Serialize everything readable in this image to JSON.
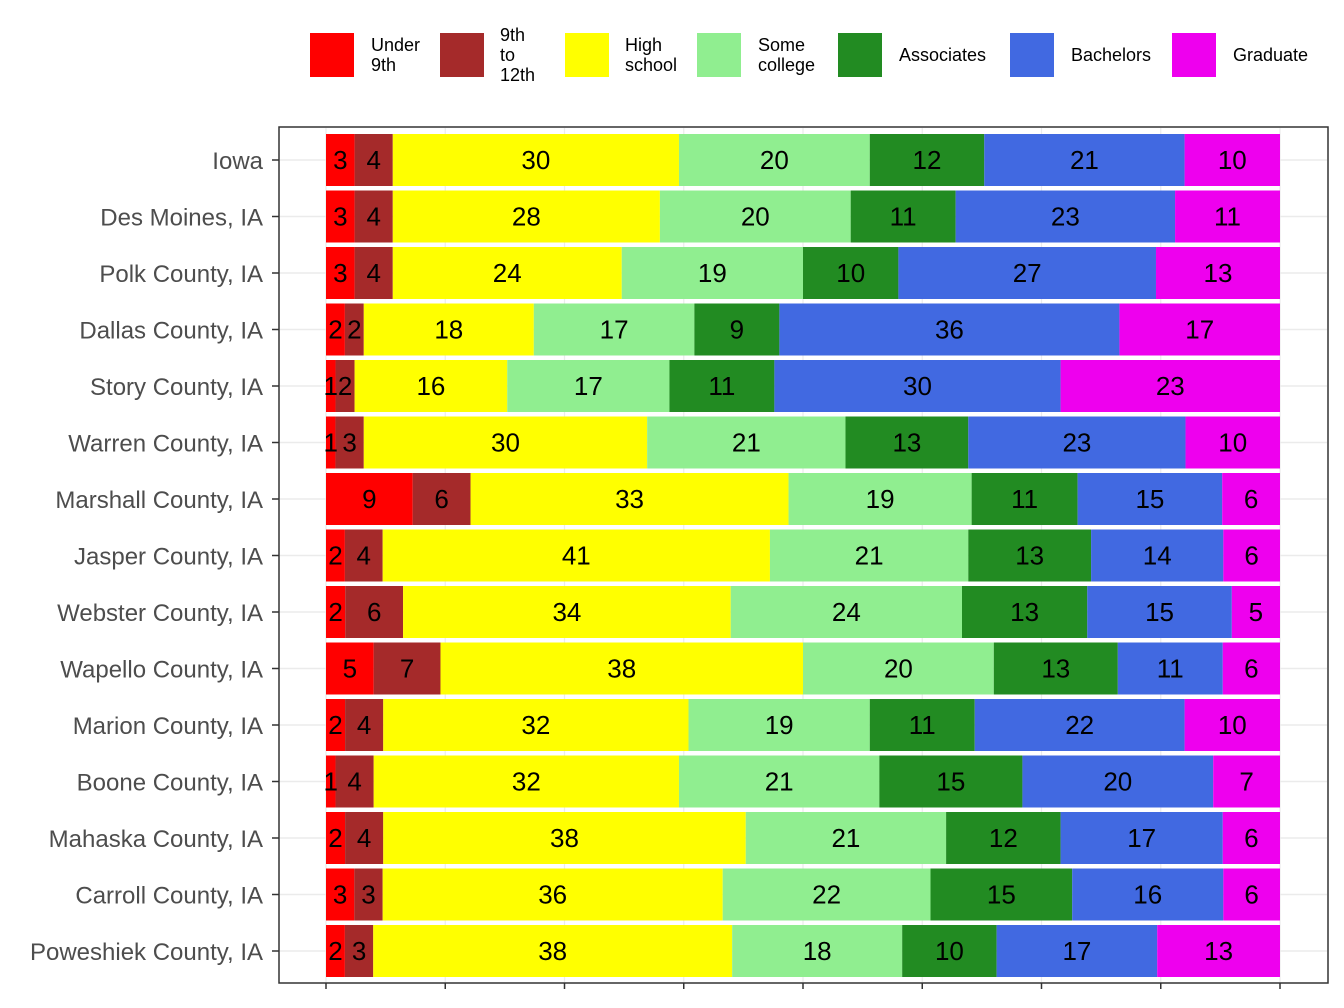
{
  "chart_data": {
    "type": "bar",
    "orientation": "horizontal",
    "stacked": true,
    "normalized_percent": true,
    "title": "",
    "xlabel": "",
    "ylabel": "",
    "xlim": [
      0,
      100
    ],
    "grid": true,
    "legend_position": "top",
    "categories": [
      "Iowa",
      "Des Moines, IA",
      "Polk County, IA",
      "Dallas County, IA",
      "Story County, IA",
      "Warren County, IA",
      "Marshall County, IA",
      "Jasper County, IA",
      "Webster County, IA",
      "Wapello County, IA",
      "Marion County, IA",
      "Boone County, IA",
      "Mahaska County, IA",
      "Carroll County, IA",
      "Poweshiek County, IA"
    ],
    "series": [
      {
        "name": "Under\n9th",
        "color": "#ff0000",
        "values": [
          3,
          3,
          3,
          2,
          1,
          1,
          9,
          2,
          2,
          5,
          2,
          1,
          2,
          3,
          2
        ]
      },
      {
        "name": "9th to\n12th",
        "color": "#a52a2a",
        "values": [
          4,
          4,
          4,
          2,
          2,
          3,
          6,
          4,
          6,
          7,
          4,
          4,
          4,
          3,
          3
        ]
      },
      {
        "name": "High\nschool",
        "color": "#ffff00",
        "values": [
          30,
          28,
          24,
          18,
          16,
          30,
          33,
          41,
          34,
          38,
          32,
          32,
          38,
          36,
          38
        ]
      },
      {
        "name": "Some\ncollege",
        "color": "#90ee90",
        "values": [
          20,
          20,
          19,
          17,
          17,
          21,
          19,
          21,
          24,
          20,
          19,
          21,
          21,
          22,
          18
        ]
      },
      {
        "name": "Associates",
        "color": "#228b22",
        "values": [
          12,
          11,
          10,
          9,
          11,
          13,
          11,
          13,
          13,
          13,
          11,
          15,
          12,
          15,
          10
        ]
      },
      {
        "name": "Bachelors",
        "color": "#4169e1",
        "values": [
          21,
          23,
          27,
          36,
          30,
          23,
          15,
          14,
          15,
          11,
          22,
          20,
          17,
          16,
          17
        ]
      },
      {
        "name": "Graduate",
        "color": "#ee00ee",
        "values": [
          10,
          11,
          13,
          17,
          23,
          10,
          6,
          6,
          5,
          6,
          10,
          7,
          6,
          6,
          13
        ]
      }
    ]
  }
}
